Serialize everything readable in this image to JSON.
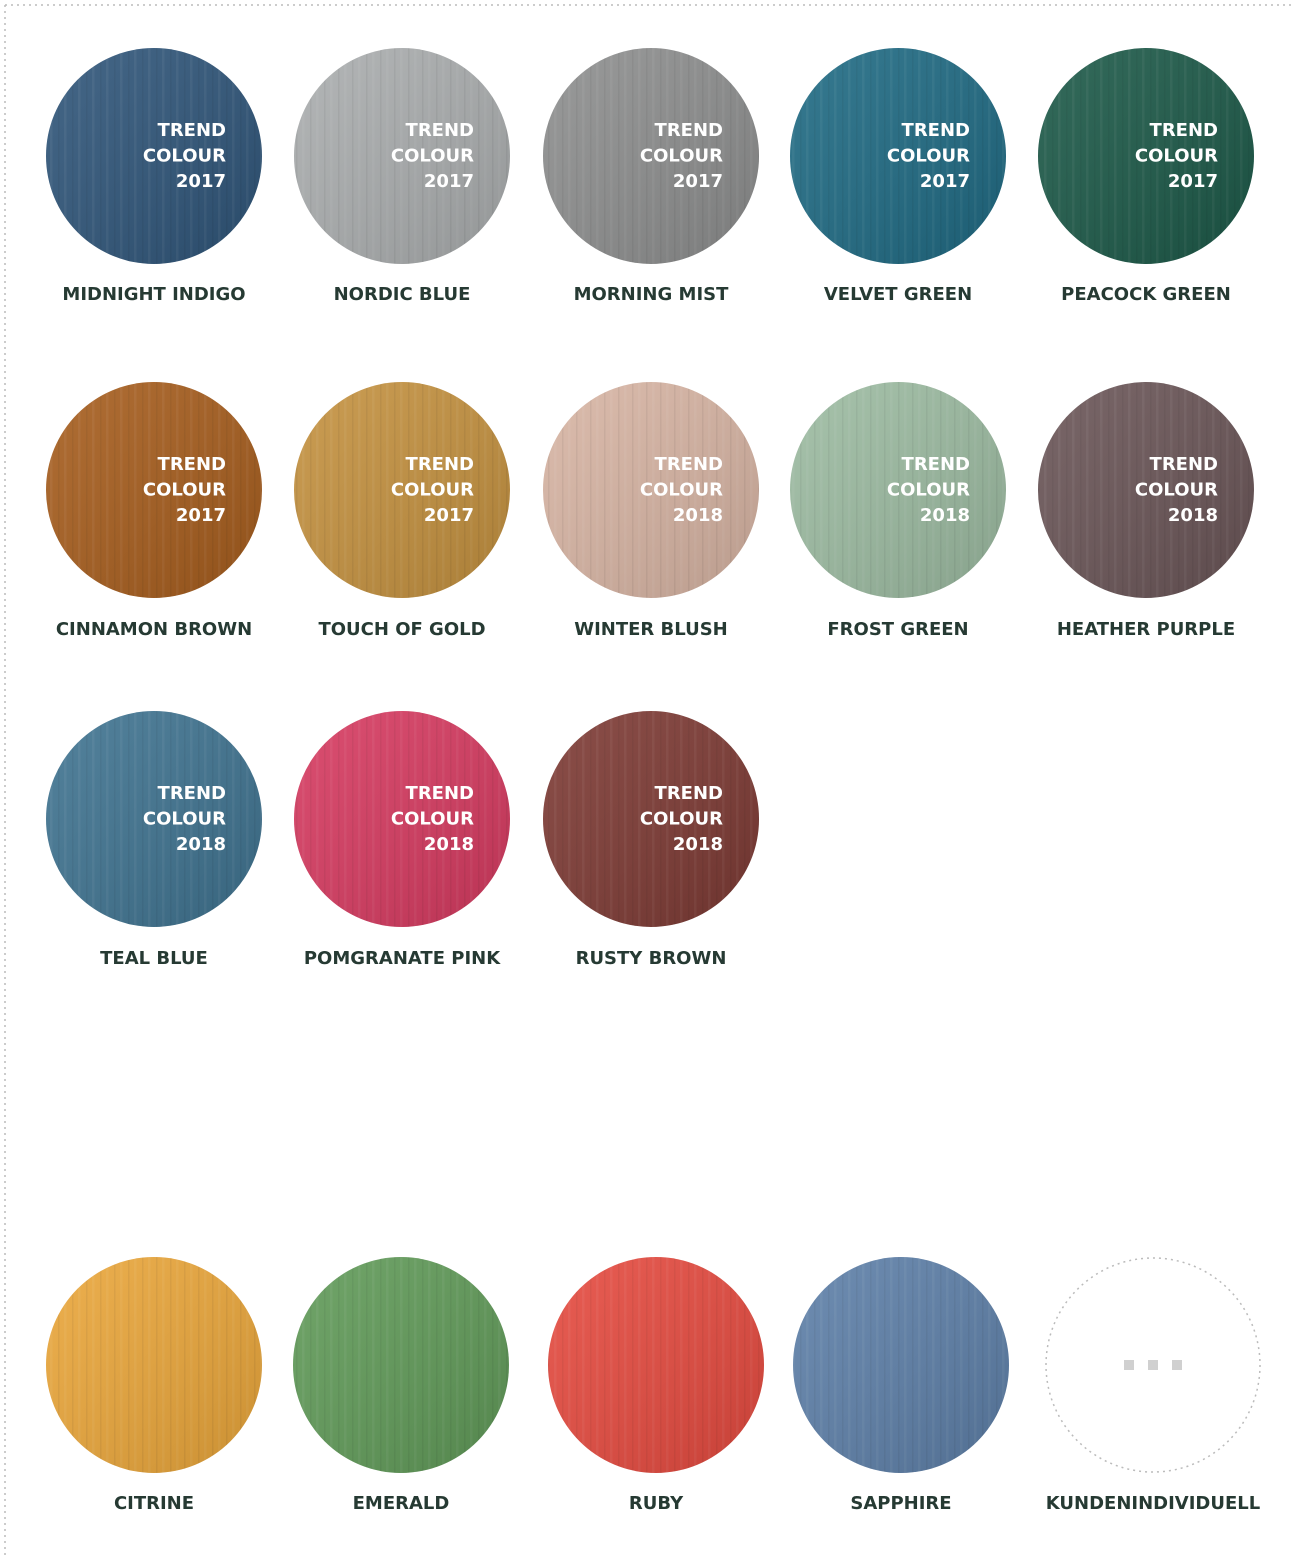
{
  "trend_swatches": [
    {
      "name": "MIDNIGHT INDIGO",
      "color": "#2f5579",
      "badge": [
        "TREND",
        "COLOUR",
        "2017"
      ]
    },
    {
      "name": "NORDIC BLUE",
      "color": "#aaadae",
      "badge": [
        "TREND",
        "COLOUR",
        "2017"
      ]
    },
    {
      "name": "MORNING MIST",
      "color": "#8d8e8e",
      "badge": [
        "TREND",
        "COLOUR",
        "2017"
      ]
    },
    {
      "name": "VELVET GREEN",
      "color": "#1f6a83",
      "badge": [
        "TREND",
        "COLOUR",
        "2017"
      ]
    },
    {
      "name": "PEACOCK GREEN",
      "color": "#1c5948",
      "badge": [
        "TREND",
        "COLOUR",
        "2017"
      ]
    },
    {
      "name": "CINNAMON BROWN",
      "color": "#a65d1d",
      "badge": [
        "TREND",
        "COLOUR",
        "2017"
      ]
    },
    {
      "name": "TOUCH OF GOLD",
      "color": "#c4913f",
      "badge": [
        "TREND",
        "COLOUR",
        "2017"
      ]
    },
    {
      "name": "WINTER BLUSH",
      "color": "#d7b4a3",
      "badge": [
        "TREND",
        "COLOUR",
        "2018"
      ]
    },
    {
      "name": "FROST GREEN",
      "color": "#9cbba1",
      "badge": [
        "TREND",
        "COLOUR",
        "2018"
      ]
    },
    {
      "name": "HEATHER PURPLE",
      "color": "#6a5557",
      "badge": [
        "TREND",
        "COLOUR",
        "2018"
      ]
    },
    {
      "name": "TEAL BLUE",
      "color": "#3f7390",
      "badge": [
        "TREND",
        "COLOUR",
        "2018"
      ]
    },
    {
      "name": "POMGRANATE PINK",
      "color": "#d63a60",
      "badge": [
        "TREND",
        "COLOUR",
        "2018"
      ]
    },
    {
      "name": "RUSTY BROWN",
      "color": "#7d3a34",
      "badge": [
        "TREND",
        "COLOUR",
        "2018"
      ]
    }
  ],
  "classic_swatches": [
    {
      "name": "CITRINE",
      "color": "#eaa63a"
    },
    {
      "name": "EMERALD",
      "color": "#609a58"
    },
    {
      "name": "RUBY",
      "color": "#e54a3f"
    },
    {
      "name": "SAPPHIRE",
      "color": "#5d7fa8"
    },
    {
      "name": "KUNDENINDIVIDUELL"
    }
  ]
}
